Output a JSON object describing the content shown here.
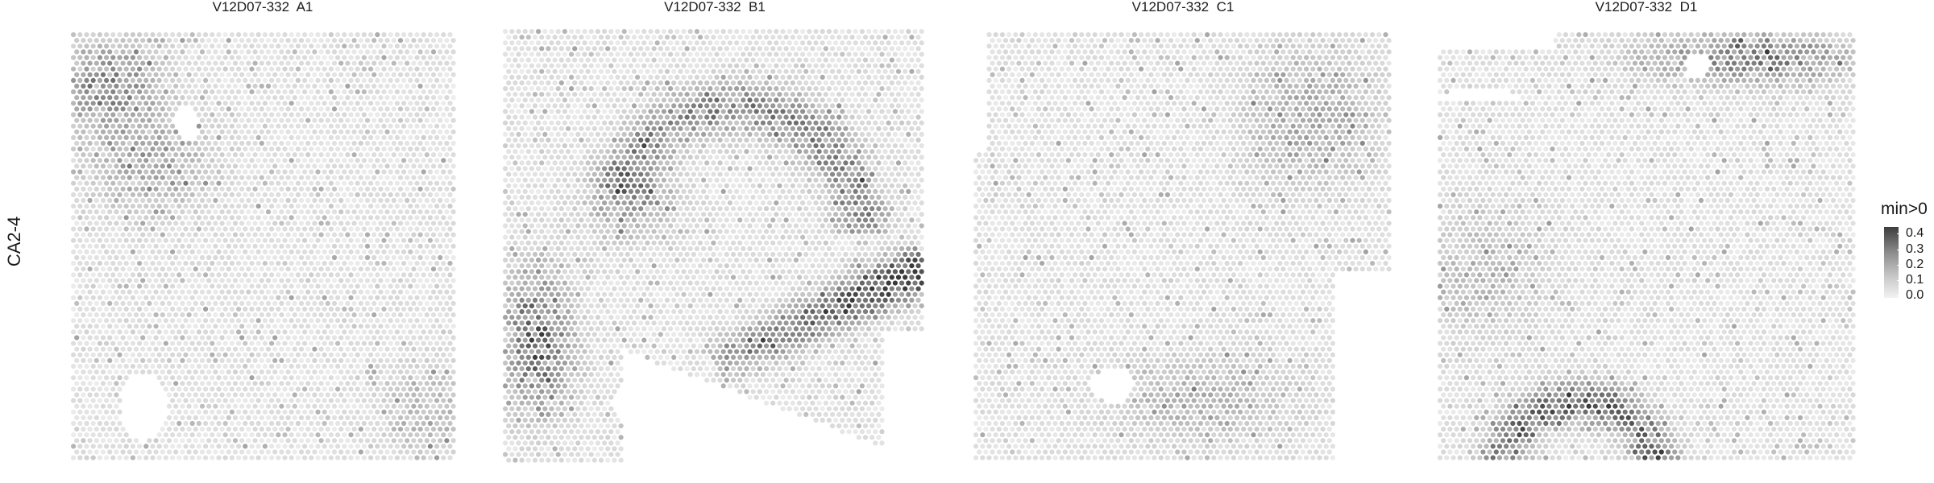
{
  "row_label": "CA2-4",
  "chart_data": {
    "type": "heatmap",
    "facet_label": "CA2-4",
    "panels": [
      {
        "title": "V12D07-332  A1",
        "hotspots": [
          {
            "cx": 0.1,
            "cy": 0.12,
            "sx": 0.12,
            "sy": 0.1,
            "amp": 0.18
          },
          {
            "cx": 0.2,
            "cy": 0.3,
            "sx": 0.15,
            "sy": 0.12,
            "amp": 0.12
          },
          {
            "cx": 0.92,
            "cy": 0.88,
            "sx": 0.1,
            "sy": 0.1,
            "amp": 0.1
          }
        ],
        "holes": [
          {
            "cx": 0.19,
            "cy": 0.87,
            "rx": 0.06,
            "ry": 0.08
          },
          {
            "cx": 0.3,
            "cy": 0.21,
            "rx": 0.03,
            "ry": 0.04
          }
        ],
        "clip": "none"
      },
      {
        "title": "V12D07-332  B1",
        "hotspots": [
          {
            "arc": true,
            "cx": 0.55,
            "cy": 0.48,
            "r": 0.3,
            "w": 0.06,
            "amp": 0.2,
            "a0": 200,
            "a1": 360
          },
          {
            "cx": 0.08,
            "cy": 0.72,
            "sx": 0.08,
            "sy": 0.15,
            "amp": 0.26
          },
          {
            "cx": 0.3,
            "cy": 0.4,
            "sx": 0.1,
            "sy": 0.08,
            "amp": 0.14
          },
          {
            "band": true,
            "x0": 0.5,
            "y0": 0.77,
            "x1": 1.0,
            "y1": 0.55,
            "w": 0.05,
            "amp": 0.32
          }
        ],
        "holes": [
          {
            "cx": 0.3,
            "cy": 0.86,
            "rx": 0.04,
            "ry": 0.04
          },
          {
            "cx": 0.97,
            "cy": 0.77,
            "rx": 0.04,
            "ry": 0.06
          }
        ],
        "clip": "b1"
      },
      {
        "title": "V12D07-332  C1",
        "hotspots": [
          {
            "cx": 0.8,
            "cy": 0.2,
            "sx": 0.15,
            "sy": 0.15,
            "amp": 0.12
          },
          {
            "cx": 0.55,
            "cy": 0.85,
            "sx": 0.2,
            "sy": 0.1,
            "amp": 0.1
          }
        ],
        "holes": [
          {
            "cx": 0.33,
            "cy": 0.82,
            "rx": 0.05,
            "ry": 0.04
          }
        ],
        "clip": "c1"
      },
      {
        "title": "V12D07-332  D1",
        "hotspots": [
          {
            "cx": 0.75,
            "cy": 0.06,
            "sx": 0.25,
            "sy": 0.06,
            "amp": 0.2
          },
          {
            "arc": true,
            "cx": 0.34,
            "cy": 1.06,
            "r": 0.2,
            "w": 0.05,
            "amp": 0.26,
            "a0": 180,
            "a1": 360
          },
          {
            "cx": 0.1,
            "cy": 0.55,
            "sx": 0.15,
            "sy": 0.15,
            "amp": 0.08
          }
        ],
        "holes": [
          {
            "cx": 0.62,
            "cy": 0.08,
            "rx": 0.03,
            "ry": 0.03
          },
          {
            "cx": 0.1,
            "cy": 0.15,
            "rx": 0.1,
            "ry": 0.015
          }
        ],
        "clip": "d1"
      }
    ],
    "legend": {
      "title": "min>0",
      "ticks": [
        0.4,
        0.3,
        0.2,
        0.1,
        0.0
      ],
      "range": [
        0,
        0.45
      ],
      "colors": {
        "low": "#f5f5f5",
        "high": "#3a3a3a"
      }
    }
  }
}
